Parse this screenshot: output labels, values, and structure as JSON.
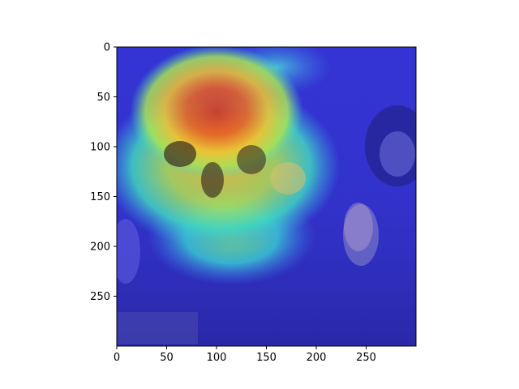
{
  "chart_data": {
    "type": "heatmap",
    "title": "",
    "xlabel": "",
    "ylabel": "",
    "xlim": [
      0,
      300
    ],
    "ylim": [
      300,
      0
    ],
    "x_ticks": [
      0,
      50,
      100,
      150,
      200,
      250
    ],
    "y_ticks": [
      0,
      50,
      100,
      150,
      200,
      250
    ],
    "colormap": "jet",
    "overlay_alpha": 0.5,
    "grid": false,
    "legend": "none",
    "description_of_image": "Photo overlaid with attention heatmap",
    "hotspots": [
      {
        "cx": 100,
        "cy": 65,
        "rx": 62,
        "ry": 48,
        "level": 1.0
      },
      {
        "cx": 105,
        "cy": 120,
        "rx": 85,
        "ry": 60,
        "level": 0.6
      },
      {
        "cx": 115,
        "cy": 190,
        "rx": 60,
        "ry": 35,
        "level": 0.35
      },
      {
        "cx": 160,
        "cy": 20,
        "rx": 40,
        "ry": 20,
        "level": 0.3
      }
    ]
  },
  "colors": {
    "axis": "#000000",
    "background": "#ffffff",
    "cold": "#2a2ad6"
  }
}
